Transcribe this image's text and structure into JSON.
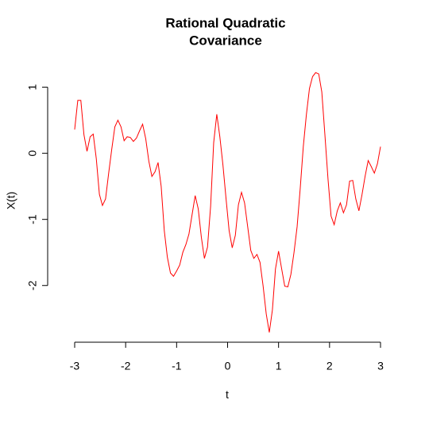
{
  "chart_data": {
    "type": "line",
    "title": [
      "Rational Quadratic",
      "Covariance"
    ],
    "xlabel": "t",
    "ylabel": "X(t)",
    "xlim": [
      -3.24,
      3.24
    ],
    "ylim": [
      -2.87,
      1.38
    ],
    "xticks": [
      -3,
      -2,
      -1,
      0,
      1,
      2,
      3
    ],
    "yticks": [
      -2,
      -1,
      0,
      1
    ],
    "grid": false,
    "series": [
      {
        "color": "#ff0000",
        "x": [
          -3,
          -2.939,
          -2.879,
          -2.818,
          -2.758,
          -2.697,
          -2.636,
          -2.576,
          -2.515,
          -2.455,
          -2.394,
          -2.333,
          -2.273,
          -2.212,
          -2.152,
          -2.091,
          -2.03,
          -1.97,
          -1.909,
          -1.848,
          -1.788,
          -1.727,
          -1.667,
          -1.606,
          -1.545,
          -1.485,
          -1.424,
          -1.364,
          -1.303,
          -1.242,
          -1.182,
          -1.121,
          -1.061,
          -1,
          -0.939,
          -0.879,
          -0.818,
          -0.758,
          -0.697,
          -0.636,
          -0.576,
          -0.515,
          -0.455,
          -0.394,
          -0.333,
          -0.273,
          -0.212,
          -0.152,
          -0.091,
          -0.03,
          0.03,
          0.091,
          0.152,
          0.212,
          0.273,
          0.333,
          0.394,
          0.455,
          0.515,
          0.576,
          0.636,
          0.697,
          0.758,
          0.818,
          0.879,
          0.939,
          1,
          1.061,
          1.121,
          1.182,
          1.242,
          1.303,
          1.364,
          1.424,
          1.485,
          1.545,
          1.606,
          1.667,
          1.727,
          1.788,
          1.848,
          1.909,
          1.97,
          2.03,
          2.091,
          2.152,
          2.212,
          2.273,
          2.333,
          2.394,
          2.455,
          2.515,
          2.576,
          2.636,
          2.697,
          2.758,
          2.818,
          2.879,
          2.939,
          3
        ],
        "values": [
          0.36,
          0.8,
          0.8,
          0.28,
          0.03,
          0.25,
          0.29,
          -0.08,
          -0.62,
          -0.79,
          -0.69,
          -0.3,
          0.06,
          0.4,
          0.5,
          0.4,
          0.19,
          0.25,
          0.24,
          0.18,
          0.23,
          0.34,
          0.44,
          0.22,
          -0.12,
          -0.35,
          -0.28,
          -0.14,
          -0.5,
          -1.17,
          -1.57,
          -1.81,
          -1.86,
          -1.78,
          -1.69,
          -1.5,
          -1.38,
          -1.22,
          -0.93,
          -0.64,
          -0.84,
          -1.27,
          -1.59,
          -1.42,
          -0.8,
          0.16,
          0.59,
          0.25,
          -0.18,
          -0.69,
          -1.17,
          -1.43,
          -1.24,
          -0.78,
          -0.59,
          -0.75,
          -1.11,
          -1.47,
          -1.59,
          -1.53,
          -1.65,
          -2.01,
          -2.43,
          -2.71,
          -2.37,
          -1.75,
          -1.48,
          -1.75,
          -2.01,
          -2.02,
          -1.83,
          -1.5,
          -1.11,
          -0.54,
          0.1,
          0.58,
          0.98,
          1.16,
          1.22,
          1.2,
          0.93,
          0.28,
          -0.39,
          -0.95,
          -1.08,
          -0.87,
          -0.75,
          -0.9,
          -0.78,
          -0.42,
          -0.41,
          -0.69,
          -0.87,
          -0.63,
          -0.35,
          -0.11,
          -0.2,
          -0.3,
          -0.16,
          0.1
        ]
      }
    ]
  }
}
